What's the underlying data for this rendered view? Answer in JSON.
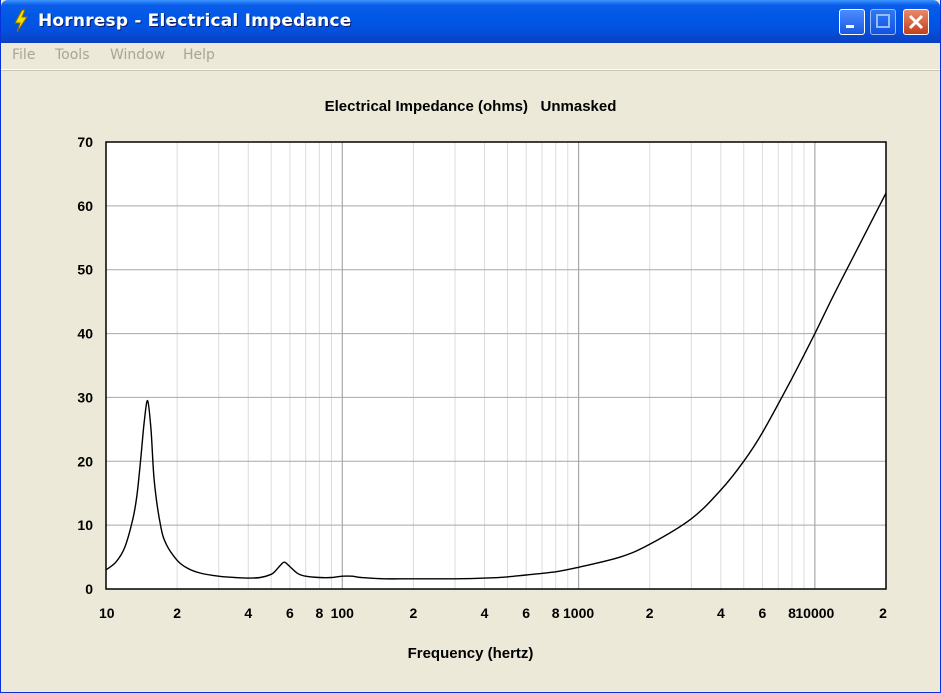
{
  "window": {
    "title": "Hornresp - Electrical Impedance"
  },
  "menu": {
    "items": [
      {
        "label": "File"
      },
      {
        "label": "Tools"
      },
      {
        "label": "Window"
      },
      {
        "label": "Help"
      }
    ]
  },
  "colors": {
    "plot_background": "#ffffff",
    "grid": "#c8c8c8",
    "curve": "#000000",
    "menu_disabled": "#a8a596"
  },
  "chart_data": {
    "type": "line",
    "title": "Electrical Impedance (ohms)   Unmasked",
    "xlabel": "Frequency (hertz)",
    "ylabel": "",
    "x_scale": "log",
    "xlim": [
      10,
      20000
    ],
    "ylim": [
      0,
      70
    ],
    "grid": true,
    "y_ticks": [
      "0",
      "10",
      "20",
      "30",
      "40",
      "50",
      "60",
      "70"
    ],
    "x_ticks": [
      {
        "value": 10,
        "label": "10"
      },
      {
        "value": 20,
        "label": "2"
      },
      {
        "value": 40,
        "label": "4"
      },
      {
        "value": 60,
        "label": "6"
      },
      {
        "value": 80,
        "label": "8"
      },
      {
        "value": 100,
        "label": "100"
      },
      {
        "value": 200,
        "label": "2"
      },
      {
        "value": 400,
        "label": "4"
      },
      {
        "value": 600,
        "label": "6"
      },
      {
        "value": 800,
        "label": "8"
      },
      {
        "value": 1000,
        "label": "1000"
      },
      {
        "value": 2000,
        "label": "2"
      },
      {
        "value": 4000,
        "label": "4"
      },
      {
        "value": 6000,
        "label": "6"
      },
      {
        "value": 8000,
        "label": "8"
      },
      {
        "value": 10000,
        "label": "10000"
      },
      {
        "value": 20000,
        "label": "2"
      }
    ],
    "series": [
      {
        "x": [
          10,
          11,
          12,
          13,
          13.5,
          14,
          14.5,
          15,
          15.5,
          16,
          17,
          18,
          20,
          22,
          25,
          30,
          35,
          40,
          45,
          50,
          52,
          55,
          57,
          60,
          65,
          70,
          80,
          90,
          100,
          110,
          120,
          150,
          200,
          300,
          400,
          500,
          600,
          800,
          1000,
          1500,
          2000,
          3000,
          4000,
          5000,
          6000,
          8000,
          10000,
          12000,
          15000,
          20000
        ],
        "y": [
          3,
          4.2,
          6.5,
          11,
          14.5,
          20,
          26,
          29.5,
          25,
          17,
          10,
          7,
          4.5,
          3.3,
          2.5,
          2,
          1.8,
          1.7,
          1.8,
          2.3,
          2.8,
          3.8,
          4.2,
          3.5,
          2.4,
          2.0,
          1.8,
          1.8,
          2.0,
          2.0,
          1.8,
          1.6,
          1.6,
          1.6,
          1.7,
          1.9,
          2.2,
          2.7,
          3.4,
          5.0,
          7.0,
          11,
          15.5,
          20,
          24.5,
          33,
          40,
          46,
          53,
          62
        ]
      }
    ]
  }
}
